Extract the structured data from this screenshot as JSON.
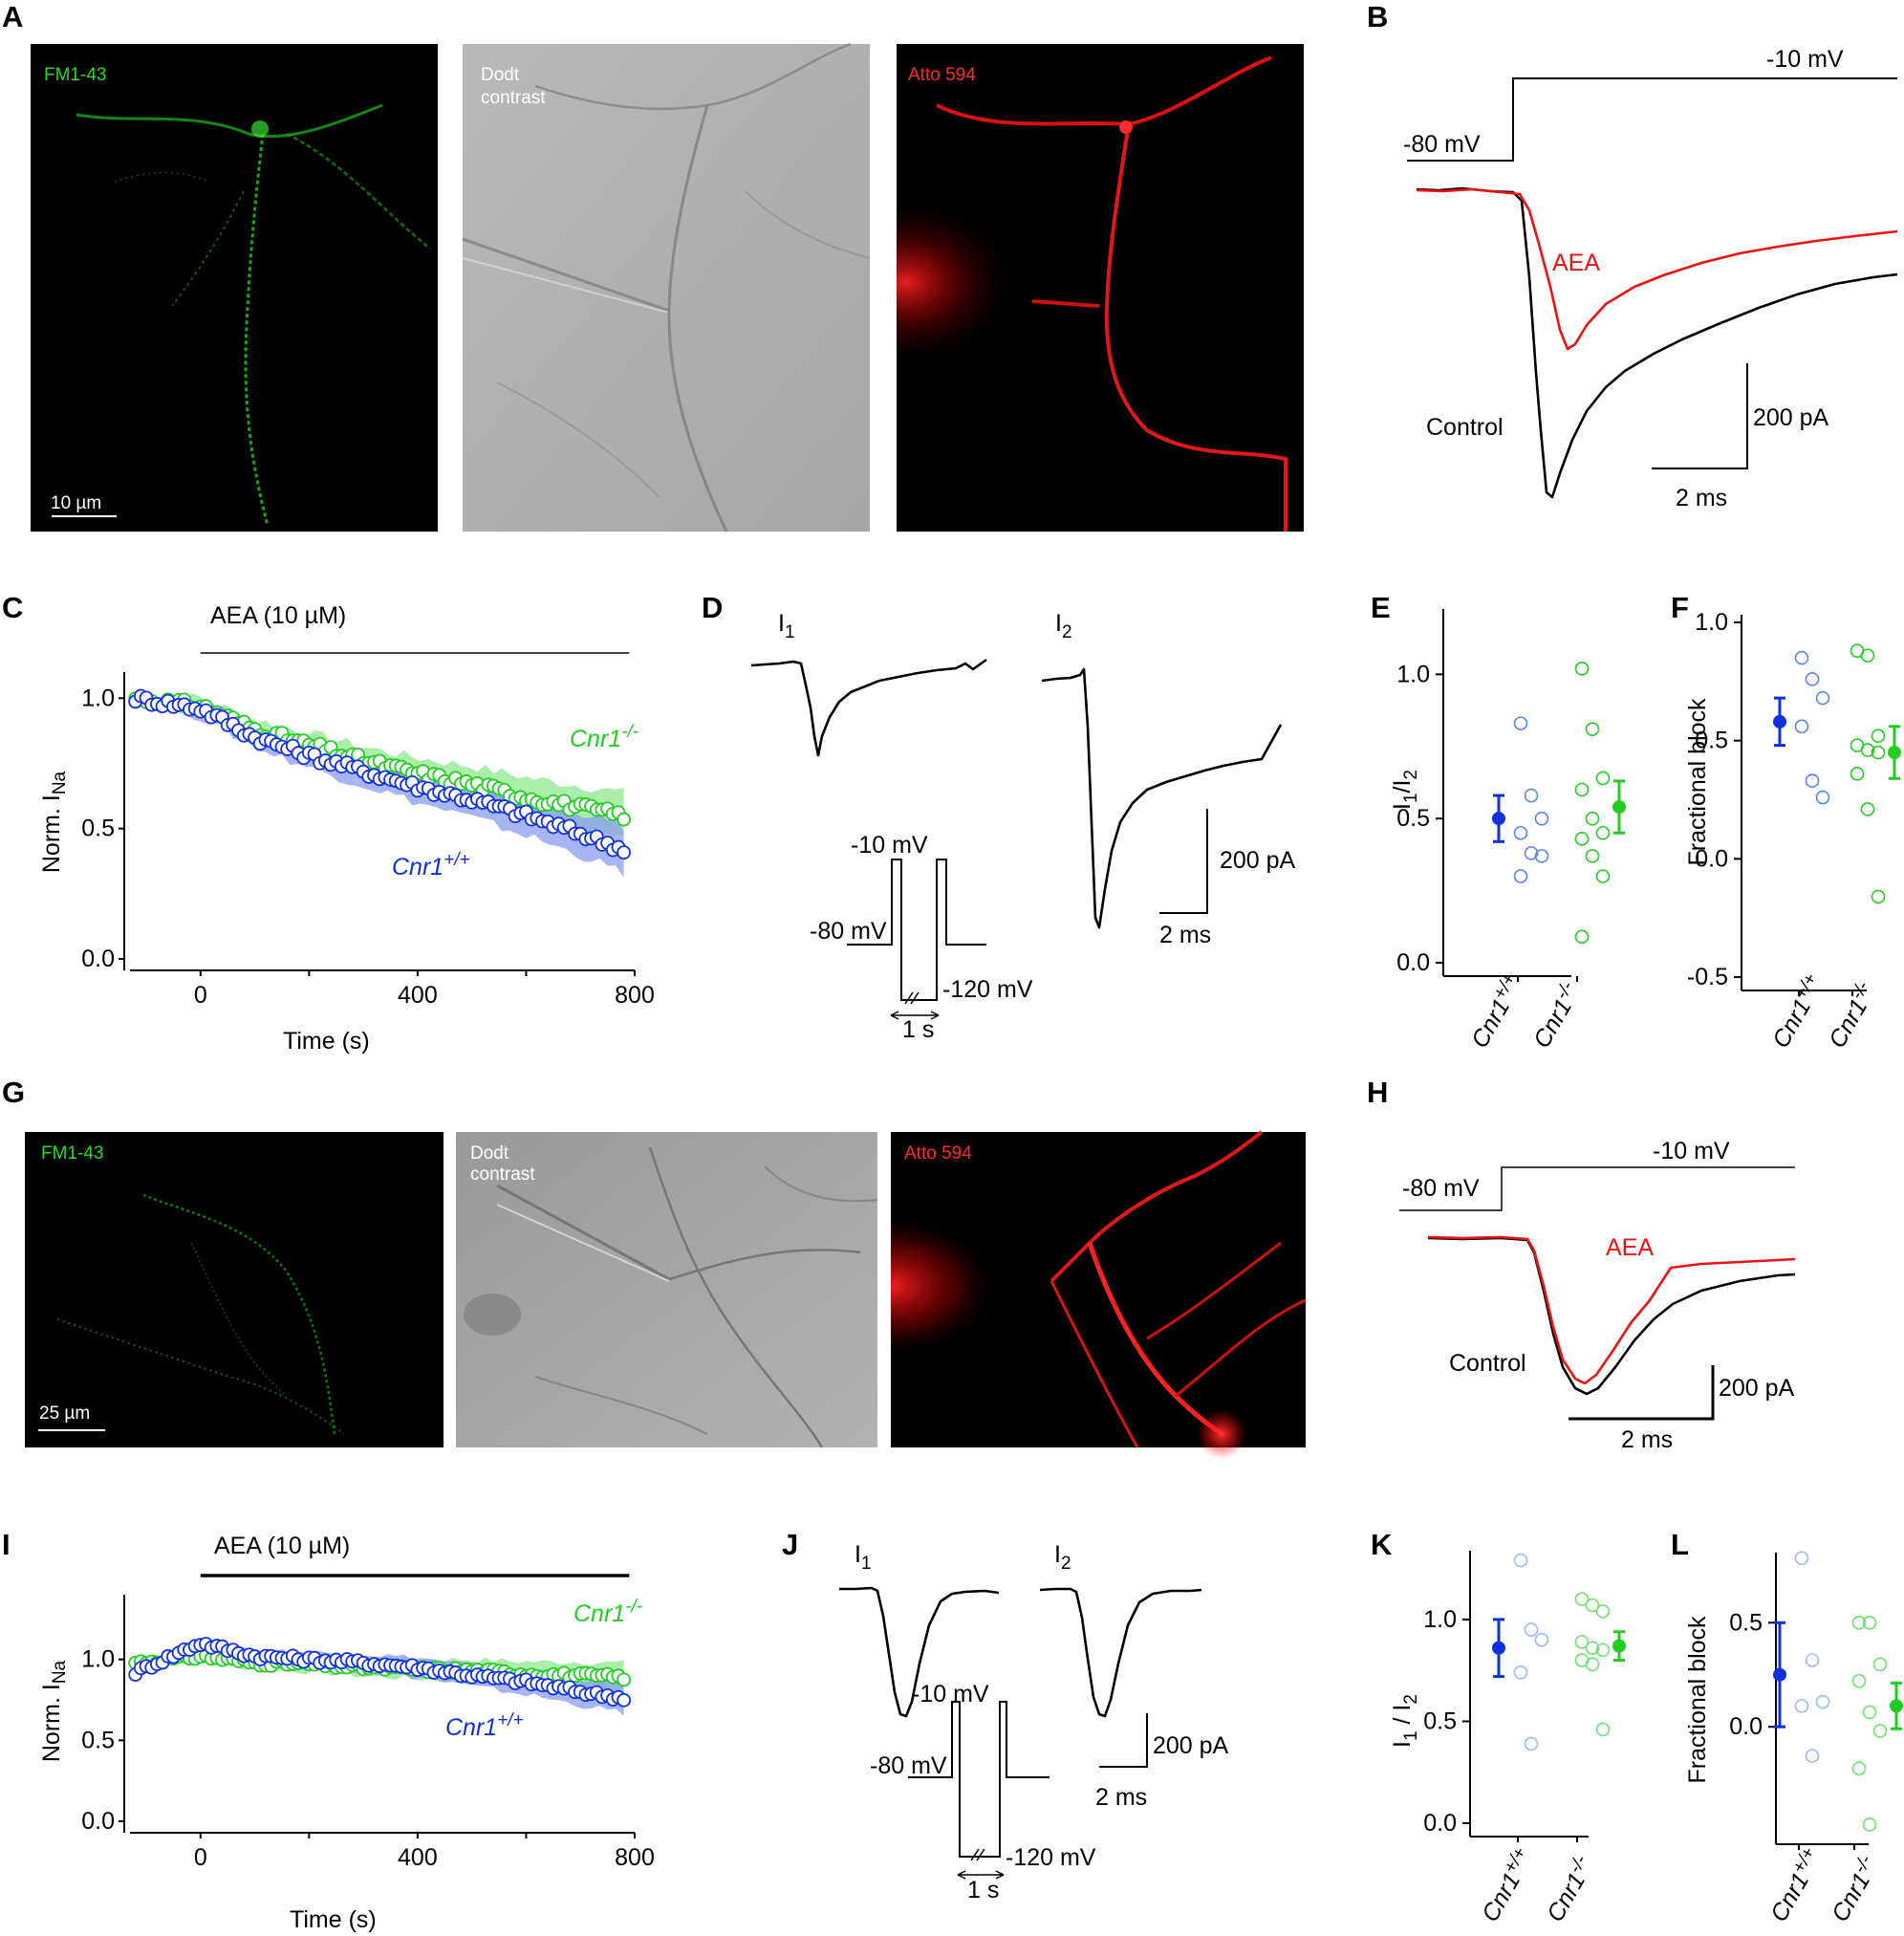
{
  "panels": {
    "A": {
      "label": "A",
      "ch1": "FM1-43",
      "ch2_l1": "Dodt",
      "ch2_l2": "contrast",
      "ch3": "Atto 594",
      "scale": "10 µm"
    },
    "B": {
      "label": "B",
      "vhold": "-80 mV",
      "vstep": "-10 mV",
      "aea": "AEA",
      "control": "Control",
      "scale_y": "200 pA",
      "scale_x": "2 ms"
    },
    "C": {
      "label": "C",
      "drug": "AEA (10 µM)",
      "ylabel": "Norm. I",
      "ylabel_sub": "Na",
      "xlabel": "Time (s)",
      "yticks": [
        "1.0",
        "0.5",
        "0.0"
      ],
      "xticks": [
        "0",
        "400",
        "800"
      ],
      "ko": "Cnr1",
      "ko_sup": "-/-",
      "wt": "Cnr1",
      "wt_sup": "+/+"
    },
    "D": {
      "label": "D",
      "i1": "I",
      "i1_sub": "1",
      "i2": "I",
      "i2_sub": "2",
      "v1": "-10 mV",
      "v2": "-80 mV",
      "v3": "-120 mV",
      "t": "1 s",
      "scale_y": "200 pA",
      "scale_x": "2 ms"
    },
    "E": {
      "label": "E",
      "ylabel": "I",
      "yl_sub1": "1",
      "yl_slash": "/I",
      "yl_sub2": "2",
      "yticks": [
        "1.0",
        "0.5",
        "0.0"
      ],
      "cat1": "Cnr1",
      "cat1_sup": "+/+",
      "cat2": "Cnr1",
      "cat2_sup": "-/-"
    },
    "F": {
      "label": "F",
      "ylabel": "Fractional block",
      "yticks": [
        "1.0",
        "0.5",
        "0.0",
        "-0.5"
      ],
      "cat1": "Cnr1",
      "cat1_sup": "+/+",
      "cat2": "Cnr1",
      "cat2_sup": "-/-"
    },
    "G": {
      "label": "G",
      "ch1": "FM1-43",
      "ch2_l1": "Dodt",
      "ch2_l2": "contrast",
      "ch3": "Atto 594",
      "scale": "25 µm"
    },
    "H": {
      "label": "H",
      "vhold": "-80 mV",
      "vstep": "-10 mV",
      "aea": "AEA",
      "control": "Control",
      "scale_y": "200 pA",
      "scale_x": "2 ms"
    },
    "I": {
      "label": "I",
      "drug": "AEA (10 µM)",
      "ylabel": "Norm. I",
      "ylabel_sub": "Na",
      "xlabel": "Time (s)",
      "yticks": [
        "1.0",
        "0.5",
        "0.0"
      ],
      "xticks": [
        "0",
        "400",
        "800"
      ],
      "ko": "Cnr1",
      "ko_sup": "-/-",
      "wt": "Cnr1",
      "wt_sup": "+/+"
    },
    "J": {
      "label": "J",
      "i1": "I",
      "i1_sub": "1",
      "i2": "I",
      "i2_sub": "2",
      "v1": "-10 mV",
      "v2": "-80 mV",
      "v3": "-120 mV",
      "t": "1 s",
      "scale_y": "200 pA",
      "scale_x": "2 ms"
    },
    "K": {
      "label": "K",
      "ylabel": "I",
      "yl_sub1": "1",
      "yl_slash": " / I",
      "yl_sub2": "2",
      "yticks": [
        "1.0",
        "0.5",
        "0.0"
      ],
      "cat1": "Cnr1",
      "cat1_sup": "+/+",
      "cat2": "Cnr1",
      "cat2_sup": "-/-"
    },
    "L": {
      "label": "L",
      "ylabel": "Fractional block",
      "yticks": [
        "0.5",
        "0.0"
      ],
      "cat1": "Cnr1",
      "cat1_sup": "+/+",
      "cat2": "Cnr1",
      "cat2_sup": "-/-"
    }
  },
  "colors": {
    "ko": "#22cc22",
    "wt": "#1030dd",
    "wt_light": "#5b82ee",
    "aea": "#ee1111",
    "control": "#000000",
    "ko_band": "#8ee88e",
    "wt_band": "#8a9cf0"
  },
  "chart_data": [
    {
      "panel": "C",
      "type": "scatter",
      "xlabel": "Time (s)",
      "ylabel": "Norm. INa",
      "xlim": [
        -130,
        800
      ],
      "ylim": [
        0,
        1.1
      ],
      "series": [
        {
          "name": "Cnr1-/-",
          "x": [
            -120,
            0,
            100,
            200,
            300,
            400,
            500,
            600,
            700,
            780
          ],
          "y": [
            1.0,
            0.97,
            0.88,
            0.82,
            0.76,
            0.71,
            0.67,
            0.62,
            0.58,
            0.55
          ]
        },
        {
          "name": "Cnr1+/+",
          "x": [
            -120,
            0,
            100,
            200,
            300,
            400,
            500,
            600,
            700,
            780
          ],
          "y": [
            1.0,
            0.96,
            0.85,
            0.78,
            0.72,
            0.66,
            0.61,
            0.55,
            0.48,
            0.42
          ]
        }
      ]
    },
    {
      "panel": "E",
      "type": "scatter",
      "ylabel": "I1/I2",
      "ylim": [
        0,
        1.2
      ],
      "categories": [
        "Cnr1+/+",
        "Cnr1-/-"
      ],
      "series": [
        {
          "name": "Cnr1+/+",
          "points": [
            0.83,
            0.58,
            0.5,
            0.45,
            0.38,
            0.37,
            0.3
          ],
          "mean": 0.5,
          "sem": 0.08
        },
        {
          "name": "Cnr1-/-",
          "points": [
            1.02,
            0.81,
            0.64,
            0.6,
            0.5,
            0.45,
            0.43,
            0.37,
            0.3,
            0.09
          ],
          "mean": 0.54,
          "sem": 0.09
        }
      ]
    },
    {
      "panel": "F",
      "type": "scatter",
      "ylabel": "Fractional block",
      "ylim": [
        -0.5,
        1.0
      ],
      "categories": [
        "Cnr1+/+",
        "Cnr1-/-"
      ],
      "series": [
        {
          "name": "Cnr1+/+",
          "points": [
            0.85,
            0.76,
            0.68,
            0.56,
            0.33,
            0.26
          ],
          "mean": 0.58,
          "sem": 0.1
        },
        {
          "name": "Cnr1-/-",
          "points": [
            0.88,
            0.86,
            0.52,
            0.48,
            0.46,
            0.45,
            0.36,
            0.21,
            -0.16
          ],
          "mean": 0.45,
          "sem": 0.11
        }
      ]
    },
    {
      "panel": "I",
      "type": "scatter",
      "xlabel": "Time (s)",
      "ylabel": "Norm. INa",
      "xlim": [
        -130,
        800
      ],
      "ylim": [
        0,
        1.4
      ],
      "series": [
        {
          "name": "Cnr1-/-",
          "x": [
            -120,
            0,
            100,
            200,
            300,
            400,
            500,
            600,
            700,
            780
          ],
          "y": [
            0.98,
            1.02,
            0.98,
            0.97,
            0.95,
            0.94,
            0.93,
            0.91,
            0.9,
            0.89
          ]
        },
        {
          "name": "Cnr1+/+",
          "x": [
            -120,
            0,
            100,
            200,
            300,
            400,
            500,
            600,
            700,
            780
          ],
          "y": [
            0.92,
            1.1,
            1.02,
            1.0,
            0.98,
            0.95,
            0.9,
            0.86,
            0.8,
            0.76
          ]
        }
      ]
    },
    {
      "panel": "K",
      "type": "scatter",
      "ylabel": "I1 / I2",
      "ylim": [
        0,
        1.3
      ],
      "categories": [
        "Cnr1+/+",
        "Cnr1-/-"
      ],
      "series": [
        {
          "name": "Cnr1+/+",
          "points": [
            1.29,
            0.95,
            0.9,
            0.74,
            0.39
          ],
          "mean": 0.86,
          "sem": 0.14
        },
        {
          "name": "Cnr1-/-",
          "points": [
            1.1,
            1.07,
            1.04,
            0.89,
            0.86,
            0.85,
            0.8,
            0.78,
            0.46
          ],
          "mean": 0.87,
          "sem": 0.07
        }
      ]
    },
    {
      "panel": "L",
      "type": "scatter",
      "ylabel": "Fractional block",
      "ylim": [
        -0.5,
        0.8
      ],
      "categories": [
        "Cnr1+/+",
        "Cnr1-/-"
      ],
      "series": [
        {
          "name": "Cnr1+/+",
          "points": [
            0.81,
            0.32,
            0.12,
            0.1,
            -0.14
          ],
          "mean": 0.25,
          "sem": 0.25
        },
        {
          "name": "Cnr1-/-",
          "points": [
            0.5,
            0.5,
            0.3,
            0.22,
            0.07,
            -0.02,
            -0.2,
            -0.47
          ],
          "mean": 0.1,
          "sem": 0.11
        }
      ]
    }
  ]
}
